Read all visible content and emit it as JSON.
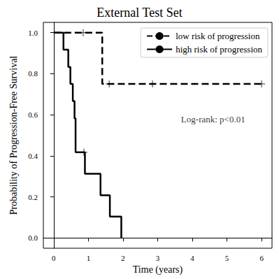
{
  "chart_data": {
    "type": "kaplan_meier",
    "title": "External Test Set",
    "x_label": "Time (years)",
    "y_label": "Probability of Progression-Free Survival",
    "xlim": [
      -0.3,
      6.3
    ],
    "xticks": [
      0,
      1,
      2,
      3,
      4,
      5,
      6
    ],
    "ylim": [
      -0.05,
      1.05
    ],
    "yticks": [
      {
        "value": 0,
        "label": "0.0"
      },
      0.2,
      0.4,
      0.6,
      0.8,
      {
        "value": 1,
        "label": "1.0"
      }
    ],
    "legend": "upper right",
    "grid": false,
    "series": [
      {
        "name": "low risk of progression",
        "color": "#000000",
        "line_style": "dashed",
        "x": [
          0,
          1.4,
          6.0
        ],
        "values": [
          1.0,
          0.75,
          0.75
        ],
        "censored": {
          "marker": "plus",
          "x": [
            0.85,
            1.6,
            2.85,
            6.0
          ],
          "values": [
            1.0,
            0.75,
            0.75,
            0.75
          ]
        }
      },
      {
        "name": "high risk of progression",
        "color": "#000000",
        "line_style": "solid",
        "x": [
          0,
          0.28,
          0.42,
          0.48,
          0.55,
          0.6,
          0.63,
          0.9,
          1.35,
          1.62,
          1.95
        ],
        "values": [
          1.0,
          0.917,
          0.833,
          0.75,
          0.667,
          0.583,
          0.417,
          0.3125,
          0.208,
          0.104,
          0.0
        ],
        "censored": {
          "marker": "plus",
          "x": [
            0.87
          ],
          "values": [
            0.417
          ]
        }
      }
    ],
    "annotations": [
      {
        "text": "Log-rank: p<0.01",
        "x": 4.6,
        "y": 0.58
      }
    ]
  }
}
